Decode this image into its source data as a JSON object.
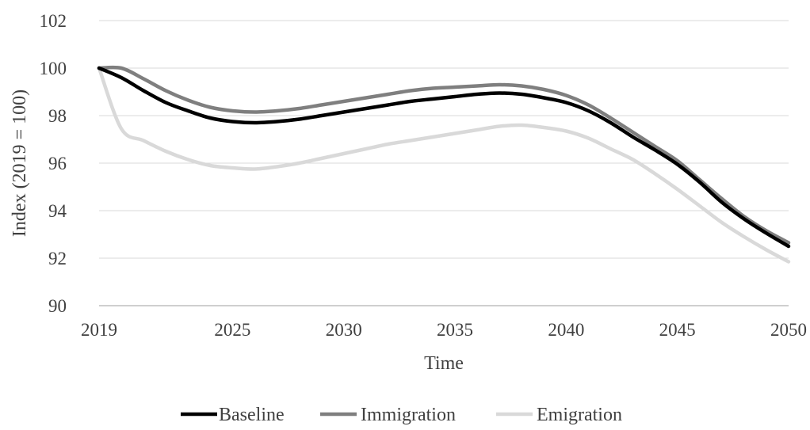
{
  "chart_data": {
    "type": "line",
    "title": "",
    "xlabel": "Time",
    "ylabel": "Index (2019 = 100)",
    "xlim": [
      2019,
      2050
    ],
    "ylim": [
      90,
      102
    ],
    "x_ticks": [
      "2019",
      "2025",
      "2030",
      "2035",
      "2040",
      "2045",
      "2050"
    ],
    "y_ticks": [
      "90",
      "92",
      "94",
      "96",
      "98",
      "100",
      "102"
    ],
    "grid": "horizontal",
    "legend_position": "bottom",
    "x": [
      2019,
      2020,
      2021,
      2022,
      2023,
      2024,
      2025,
      2026,
      2027,
      2028,
      2029,
      2030,
      2031,
      2032,
      2033,
      2034,
      2035,
      2036,
      2037,
      2038,
      2039,
      2040,
      2041,
      2042,
      2043,
      2044,
      2045,
      2046,
      2047,
      2048,
      2049,
      2050
    ],
    "series": [
      {
        "name": "Immigration",
        "color": "#7f7f7f",
        "values": [
          100.0,
          100.0,
          99.55,
          99.05,
          98.65,
          98.35,
          98.2,
          98.15,
          98.2,
          98.3,
          98.45,
          98.6,
          98.75,
          98.9,
          99.05,
          99.15,
          99.2,
          99.25,
          99.3,
          99.25,
          99.1,
          98.85,
          98.45,
          97.9,
          97.3,
          96.7,
          96.1,
          95.3,
          94.5,
          93.75,
          93.15,
          92.65
        ]
      },
      {
        "name": "Baseline",
        "color": "#000000",
        "values": [
          100.0,
          99.6,
          99.05,
          98.55,
          98.2,
          97.9,
          97.75,
          97.7,
          97.75,
          97.85,
          98.0,
          98.15,
          98.3,
          98.45,
          98.6,
          98.7,
          98.8,
          98.9,
          98.95,
          98.9,
          98.75,
          98.55,
          98.2,
          97.7,
          97.1,
          96.55,
          95.95,
          95.2,
          94.35,
          93.65,
          93.05,
          92.5
        ]
      },
      {
        "name": "Emigration",
        "color": "#d9d9d9",
        "values": [
          100.0,
          97.45,
          96.95,
          96.5,
          96.15,
          95.9,
          95.8,
          95.75,
          95.85,
          96.0,
          96.2,
          96.4,
          96.6,
          96.8,
          96.95,
          97.1,
          97.25,
          97.4,
          97.55,
          97.6,
          97.5,
          97.35,
          97.05,
          96.6,
          96.15,
          95.55,
          94.9,
          94.2,
          93.5,
          92.9,
          92.35,
          91.85
        ]
      }
    ],
    "legend": [
      {
        "name": "Baseline",
        "color": "#000000"
      },
      {
        "name": "Immigration",
        "color": "#7f7f7f"
      },
      {
        "name": "Emigration",
        "color": "#d9d9d9"
      }
    ]
  }
}
